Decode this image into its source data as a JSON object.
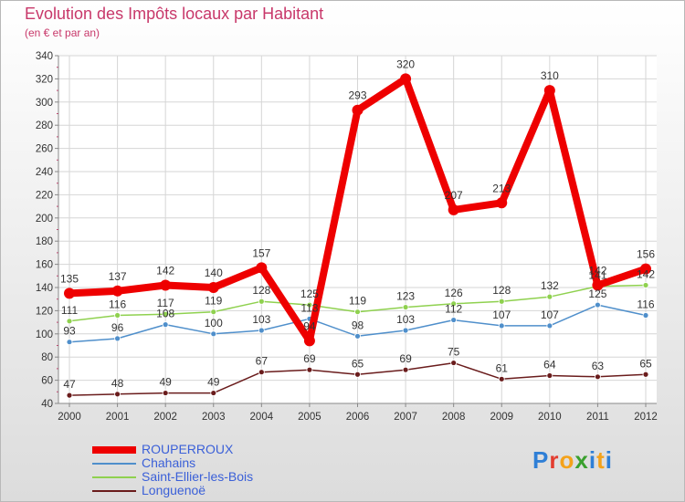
{
  "header": {
    "title": "Evolution des Impôts locaux par Habitant",
    "subtitle": "(en € et par an)"
  },
  "logo": {
    "text": "Proxiti"
  },
  "chart_data": {
    "type": "line",
    "title": "Evolution des Impôts locaux par Habitant",
    "subtitle": "(en € et par an)",
    "xlabel": "",
    "ylabel": "",
    "x": [
      "2000",
      "2001",
      "2002",
      "2003",
      "2004",
      "2005",
      "2006",
      "2007",
      "2008",
      "2009",
      "2010",
      "2011",
      "2012"
    ],
    "ylim": [
      40,
      340
    ],
    "yticks": [
      40,
      60,
      80,
      100,
      120,
      140,
      160,
      180,
      200,
      220,
      240,
      260,
      280,
      300,
      320,
      340
    ],
    "grid": true,
    "legend_position": "bottom-left",
    "series": [
      {
        "name": "ROUPERROUX",
        "color": "#ee0000",
        "values": [
          135,
          137,
          142,
          140,
          157,
          94,
          293,
          320,
          207,
          213,
          310,
          142,
          156
        ],
        "labels": [
          "135",
          "137",
          "142",
          "140",
          "157",
          "94",
          "293",
          "320",
          "207",
          "213",
          "310",
          "142",
          "156"
        ]
      },
      {
        "name": "Chahains",
        "color": "#4f8fcb",
        "values": [
          93,
          96,
          108,
          100,
          103,
          113,
          98,
          103,
          112,
          107,
          107,
          125,
          116
        ],
        "labels": [
          "93",
          "96",
          "108",
          "100",
          "103",
          "113",
          "98",
          "103",
          "112",
          "107",
          "107",
          "125",
          "116"
        ]
      },
      {
        "name": "Saint-Ellier-les-Bois",
        "color": "#8fd14f",
        "values": [
          111,
          116,
          117,
          119,
          128,
          125,
          119,
          123,
          126,
          128,
          132,
          141,
          142
        ],
        "labels": [
          "111",
          "116",
          "117",
          "119",
          "128",
          "125",
          "119",
          "123",
          "126",
          "128",
          "132",
          "141",
          "142"
        ]
      },
      {
        "name": "Longuenoë",
        "color": "#6a1c1c",
        "values": [
          47,
          48,
          49,
          49,
          67,
          69,
          65,
          69,
          75,
          61,
          64,
          63,
          65
        ],
        "labels": [
          "47",
          "48",
          "49",
          "49",
          "67",
          "69",
          "65",
          "69",
          "75",
          "61",
          "64",
          "63",
          "65"
        ]
      }
    ]
  }
}
